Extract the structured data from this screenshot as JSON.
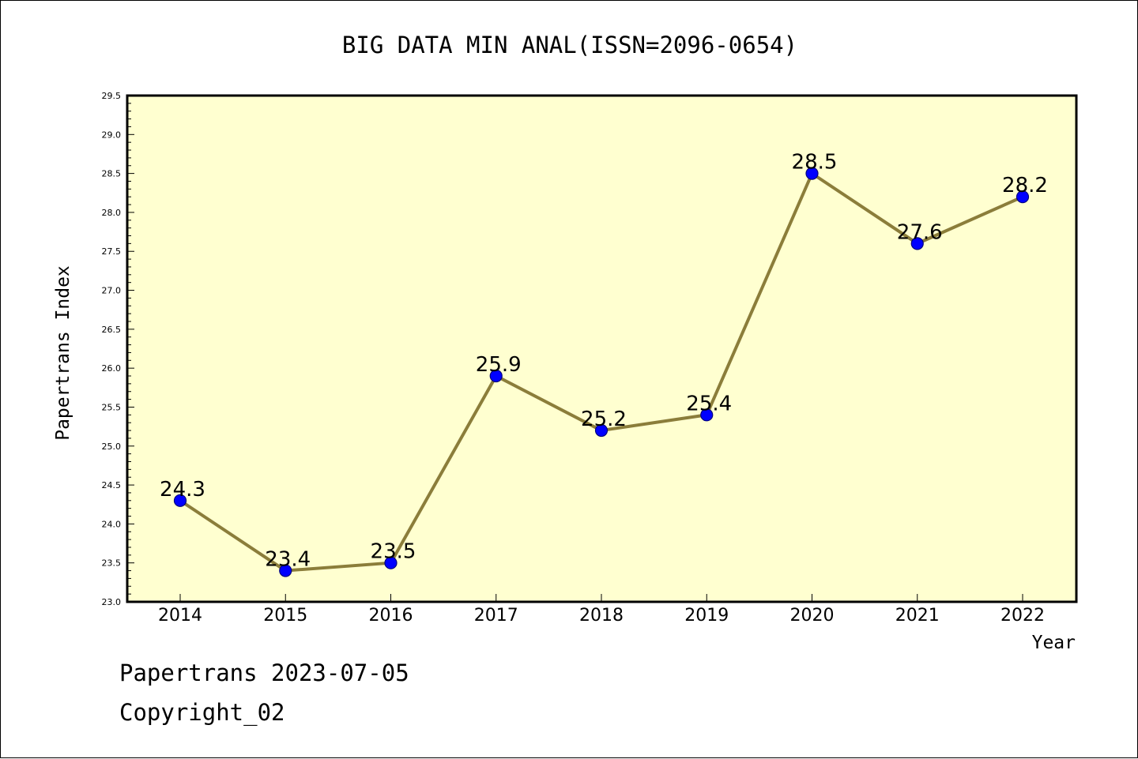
{
  "footer": {
    "line1": "Papertrans 2023-07-05",
    "line2": "Copyright_02"
  },
  "chart_data": {
    "type": "line",
    "title": "BIG DATA MIN ANAL(ISSN=2096-0654)",
    "xlabel": "Year",
    "ylabel": "Papertrans Index",
    "categories": [
      "2014",
      "2015",
      "2016",
      "2017",
      "2018",
      "2019",
      "2020",
      "2021",
      "2022"
    ],
    "series": [
      {
        "values": [
          24.3,
          23.4,
          23.5,
          25.9,
          25.2,
          25.4,
          28.5,
          27.6,
          28.2
        ]
      }
    ],
    "data_labels": [
      "24.3",
      "23.4",
      "23.5",
      "25.9",
      "25.2",
      "25.4",
      "28.5",
      "27.6",
      "28.2"
    ],
    "ylim": [
      23.0,
      29.5
    ],
    "yticks": [
      "23.0",
      "23.5",
      "24.0",
      "24.5",
      "25.0",
      "25.5",
      "26.0",
      "26.5",
      "27.0",
      "27.5",
      "28.0",
      "28.5",
      "29.0",
      "29.5"
    ],
    "grid": false,
    "colors": {
      "plot_background": "#ffffd0",
      "line": "#8b7d3a",
      "marker_fill": "#0000ff",
      "marker_edge": "#000080"
    }
  }
}
